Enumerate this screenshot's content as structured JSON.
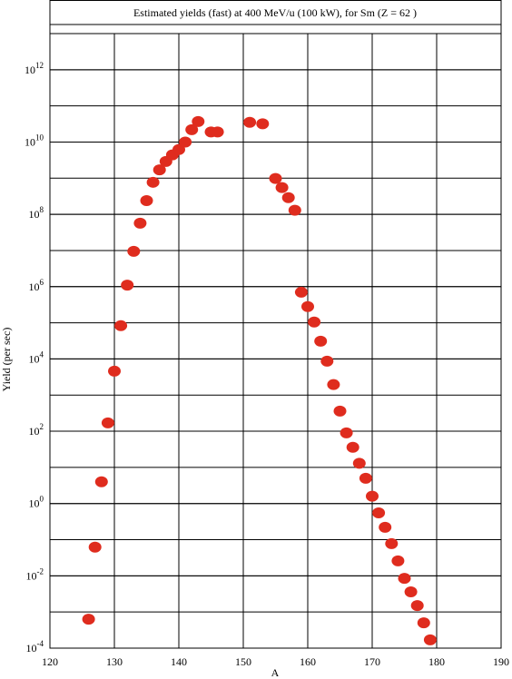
{
  "chart_data": {
    "type": "scatter",
    "title": "Estimated yields (fast) at 400 MeV/u (100 kW), for Sm (Z = 62 )",
    "x_label": "A",
    "y_label": "Yield (per sec)",
    "log_y": true,
    "grid": true,
    "color": "#df2c1e",
    "xlim": [
      120,
      190
    ],
    "xticks": [
      120,
      130,
      140,
      150,
      160,
      170,
      180,
      190
    ],
    "ylim": [
      0.0001,
      10000000000000
    ],
    "yticks": [
      {
        "value": 0.0001,
        "label": "10",
        "exponent": "-4"
      },
      {
        "value": 0.01,
        "label": "10",
        "exponent": "-2"
      },
      {
        "value": 1,
        "label": "10",
        "exponent": "0"
      },
      {
        "value": 100,
        "label": "10",
        "exponent": "2"
      },
      {
        "value": 10000,
        "label": "10",
        "exponent": "4"
      },
      {
        "value": 1000000,
        "label": "10",
        "exponent": "6"
      },
      {
        "value": 100000000,
        "label": "10",
        "exponent": "8"
      },
      {
        "value": 10000000000,
        "label": "10",
        "exponent": "10"
      },
      {
        "value": 1000000000000,
        "label": "10",
        "exponent": "12"
      }
    ],
    "x": [
      126,
      127,
      128,
      129,
      130,
      131,
      132,
      133,
      134,
      135,
      136,
      137,
      138,
      139,
      140,
      141,
      142,
      143,
      145,
      146,
      151,
      153,
      155,
      156,
      157,
      158,
      159,
      160,
      161,
      162,
      163,
      164,
      165,
      166,
      167,
      168,
      169,
      170,
      171,
      172,
      173,
      174,
      175,
      176,
      177,
      178,
      179
    ],
    "values": [
      0.00063,
      0.062,
      4,
      170,
      4600,
      83000,
      1100000,
      9500000,
      57000000,
      240000000,
      770000000,
      1700000000,
      2900000000,
      4400000000,
      6200000000,
      10000000000,
      22000000000,
      37000000000,
      19000000000,
      19000000000,
      35000000000,
      32000000000,
      980000000,
      550000000,
      290000000,
      130000000,
      700000,
      280000,
      105000,
      31000,
      8700,
      1950,
      360,
      90,
      36,
      13,
      5,
      1.6,
      0.55,
      0.22,
      0.078,
      0.026,
      0.0085,
      0.0036,
      0.0015,
      0.0005,
      0.00017
    ]
  }
}
